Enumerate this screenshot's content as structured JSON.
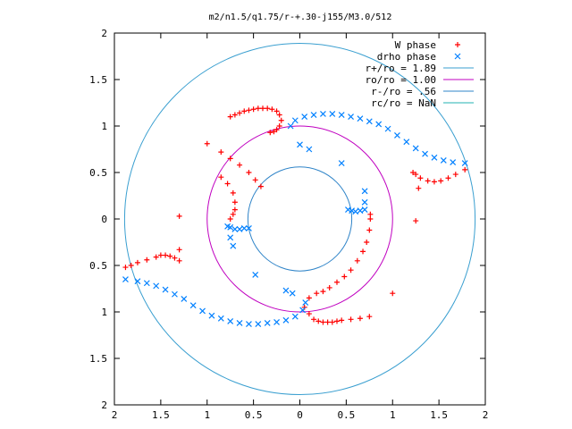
{
  "title": "m2/n1.5/q1.75/r-+.30-j155/M3.0/512",
  "chart_data": {
    "type": "scatter",
    "title": "m2/n1.5/q1.75/r-+.30-j155/M3.0/512",
    "xlim": [
      -2,
      2
    ],
    "ylim": [
      -2,
      2
    ],
    "x_ticks": [
      "2",
      "1.5",
      "1",
      "0.5",
      "0",
      "0.5",
      "1",
      "1.5",
      "2"
    ],
    "y_ticks": [
      "2",
      "1.5",
      "1",
      "0.5",
      "0",
      "0.5",
      "1",
      "1.5",
      "2"
    ],
    "x_tick_values": [
      -2,
      -1.5,
      -1,
      -0.5,
      0,
      0.5,
      1,
      1.5,
      2
    ],
    "y_tick_values": [
      2,
      1.5,
      1,
      0.5,
      0,
      -0.5,
      -1,
      -1.5,
      -2
    ],
    "grid": false,
    "legend_position": "top-right",
    "legend": [
      {
        "label": "W phase",
        "marker": "+",
        "color": "#ff0000"
      },
      {
        "label": "drho phase",
        "marker": "x",
        "color": "#0080ff"
      },
      {
        "label": "r+/ro = 1.89",
        "marker": "line",
        "color": "#3a9fd0"
      },
      {
        "label": "ro/ro = 1.00",
        "marker": "line",
        "color": "#c000c0"
      },
      {
        "label": "r-/ro = .56",
        "marker": "line",
        "color": "#2f84c8"
      },
      {
        "label": "rc/ro = NaN",
        "marker": "line",
        "color": "#20b0b0"
      }
    ],
    "circles": [
      {
        "name": "r+/ro = 1.89",
        "r": 1.89,
        "color": "#3a9fd0"
      },
      {
        "name": "ro/ro = 1.00",
        "r": 1.0,
        "color": "#c000c0"
      },
      {
        "name": "r-/ro = .56",
        "r": 0.56,
        "color": "#2f84c8"
      }
    ],
    "series": [
      {
        "name": "W phase",
        "color": "#ff0000",
        "points": [
          [
            -0.75,
            1.1
          ],
          [
            -0.7,
            1.12
          ],
          [
            -0.65,
            1.14
          ],
          [
            -0.6,
            1.16
          ],
          [
            -0.55,
            1.17
          ],
          [
            -0.5,
            1.18
          ],
          [
            -0.45,
            1.19
          ],
          [
            -0.4,
            1.19
          ],
          [
            -0.35,
            1.19
          ],
          [
            -0.3,
            1.18
          ],
          [
            -0.25,
            1.16
          ],
          [
            -0.22,
            1.12
          ],
          [
            -0.2,
            1.06
          ],
          [
            -0.22,
            1.0
          ],
          [
            -0.25,
            0.96
          ],
          [
            -0.28,
            0.94
          ],
          [
            -0.32,
            0.93
          ],
          [
            -1.0,
            0.81
          ],
          [
            -0.85,
            0.72
          ],
          [
            -0.75,
            0.65
          ],
          [
            -0.65,
            0.58
          ],
          [
            -0.55,
            0.5
          ],
          [
            -0.48,
            0.42
          ],
          [
            -0.42,
            0.35
          ],
          [
            -0.85,
            0.45
          ],
          [
            -0.78,
            0.38
          ],
          [
            -0.72,
            0.28
          ],
          [
            -0.7,
            0.18
          ],
          [
            -0.7,
            0.1
          ],
          [
            -0.72,
            0.05
          ],
          [
            -0.75,
            0.0
          ],
          [
            -1.3,
            0.03
          ],
          [
            -1.3,
            -0.33
          ],
          [
            -1.88,
            -0.52
          ],
          [
            -1.82,
            -0.5
          ],
          [
            -1.75,
            -0.47
          ],
          [
            -1.65,
            -0.44
          ],
          [
            -1.55,
            -0.41
          ],
          [
            -1.5,
            -0.39
          ],
          [
            -1.45,
            -0.39
          ],
          [
            -1.4,
            -0.4
          ],
          [
            -1.35,
            -0.42
          ],
          [
            -1.3,
            -0.45
          ],
          [
            0.05,
            -0.95
          ],
          [
            0.1,
            -1.02
          ],
          [
            0.15,
            -1.08
          ],
          [
            0.2,
            -1.1
          ],
          [
            0.25,
            -1.11
          ],
          [
            0.3,
            -1.11
          ],
          [
            0.35,
            -1.11
          ],
          [
            0.4,
            -1.1
          ],
          [
            0.45,
            -1.09
          ],
          [
            0.55,
            -1.08
          ],
          [
            0.65,
            -1.07
          ],
          [
            0.75,
            -1.05
          ],
          [
            0.1,
            -0.85
          ],
          [
            0.18,
            -0.8
          ],
          [
            0.25,
            -0.78
          ],
          [
            0.32,
            -0.74
          ],
          [
            0.4,
            -0.68
          ],
          [
            0.48,
            -0.62
          ],
          [
            0.55,
            -0.55
          ],
          [
            0.62,
            -0.45
          ],
          [
            0.68,
            -0.35
          ],
          [
            0.72,
            -0.25
          ],
          [
            0.75,
            -0.12
          ],
          [
            0.76,
            0.0
          ],
          [
            0.76,
            0.05
          ],
          [
            1.0,
            -0.8
          ],
          [
            1.25,
            -0.02
          ],
          [
            1.25,
            0.48
          ],
          [
            1.3,
            0.44
          ],
          [
            1.38,
            0.41
          ],
          [
            1.45,
            0.4
          ],
          [
            1.52,
            0.41
          ],
          [
            1.6,
            0.44
          ],
          [
            1.68,
            0.48
          ],
          [
            1.78,
            0.53
          ],
          [
            1.22,
            0.5
          ],
          [
            1.28,
            0.33
          ]
        ]
      },
      {
        "name": "drho phase",
        "color": "#0080ff",
        "points": [
          [
            -0.1,
            1.0
          ],
          [
            -0.05,
            1.06
          ],
          [
            0.05,
            1.1
          ],
          [
            0.15,
            1.12
          ],
          [
            0.25,
            1.13
          ],
          [
            0.35,
            1.13
          ],
          [
            0.45,
            1.12
          ],
          [
            0.55,
            1.1
          ],
          [
            0.65,
            1.08
          ],
          [
            0.75,
            1.05
          ],
          [
            0.85,
            1.02
          ],
          [
            0.95,
            0.97
          ],
          [
            1.05,
            0.9
          ],
          [
            1.15,
            0.83
          ],
          [
            1.25,
            0.76
          ],
          [
            1.35,
            0.7
          ],
          [
            1.45,
            0.66
          ],
          [
            1.55,
            0.63
          ],
          [
            1.65,
            0.61
          ],
          [
            1.78,
            0.6
          ],
          [
            0.0,
            0.8
          ],
          [
            0.1,
            0.75
          ],
          [
            0.45,
            0.6
          ],
          [
            0.52,
            0.1
          ],
          [
            0.56,
            0.09
          ],
          [
            0.6,
            0.08
          ],
          [
            0.65,
            0.09
          ],
          [
            0.7,
            0.1
          ],
          [
            0.7,
            0.3
          ],
          [
            0.7,
            0.18
          ],
          [
            -1.88,
            -0.65
          ],
          [
            -1.75,
            -0.67
          ],
          [
            -1.65,
            -0.69
          ],
          [
            -1.55,
            -0.72
          ],
          [
            -1.45,
            -0.76
          ],
          [
            -1.35,
            -0.81
          ],
          [
            -1.25,
            -0.86
          ],
          [
            -1.15,
            -0.93
          ],
          [
            -1.05,
            -0.99
          ],
          [
            -0.95,
            -1.04
          ],
          [
            -0.85,
            -1.07
          ],
          [
            -0.75,
            -1.1
          ],
          [
            -0.65,
            -1.12
          ],
          [
            -0.55,
            -1.13
          ],
          [
            -0.45,
            -1.13
          ],
          [
            -0.35,
            -1.12
          ],
          [
            -0.25,
            -1.11
          ],
          [
            -0.15,
            -1.09
          ],
          [
            -0.05,
            -1.05
          ],
          [
            0.03,
            -0.98
          ],
          [
            0.06,
            -0.9
          ],
          [
            -0.78,
            -0.08
          ],
          [
            -0.75,
            -0.09
          ],
          [
            -0.7,
            -0.11
          ],
          [
            -0.65,
            -0.11
          ],
          [
            -0.6,
            -0.1
          ],
          [
            -0.55,
            -0.1
          ],
          [
            -0.75,
            -0.2
          ],
          [
            -0.72,
            -0.29
          ],
          [
            -0.48,
            -0.6
          ],
          [
            -0.15,
            -0.77
          ],
          [
            -0.08,
            -0.8
          ]
        ]
      }
    ]
  }
}
